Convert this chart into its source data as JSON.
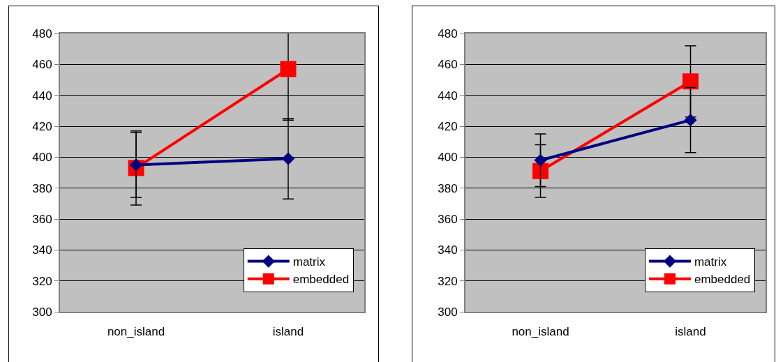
{
  "chart_data": [
    {
      "type": "line",
      "categories": [
        "non_island",
        "island"
      ],
      "ylim": [
        300,
        480
      ],
      "yticks": [
        300,
        320,
        340,
        360,
        380,
        400,
        420,
        440,
        460,
        480
      ],
      "grid": "y",
      "legend": "bottom right",
      "series": [
        {
          "name": "matrix",
          "color": "#000080",
          "marker": "diamond",
          "values": [
            395,
            399
          ],
          "errors": [
            21,
            26
          ]
        },
        {
          "name": "embedded",
          "color": "#ff0000",
          "marker": "square",
          "values": [
            393,
            457
          ],
          "errors": [
            24,
            33
          ]
        }
      ]
    },
    {
      "type": "line",
      "categories": [
        "non_island",
        "island"
      ],
      "ylim": [
        300,
        480
      ],
      "yticks": [
        300,
        320,
        340,
        360,
        380,
        400,
        420,
        440,
        460,
        480
      ],
      "grid": "y",
      "legend": "bottom right",
      "series": [
        {
          "name": "matrix",
          "color": "#000080",
          "marker": "diamond",
          "values": [
            398,
            424
          ],
          "errors": [
            17,
            21
          ]
        },
        {
          "name": "embedded",
          "color": "#ff0000",
          "marker": "square",
          "values": [
            391,
            449
          ],
          "errors": [
            17,
            23
          ]
        }
      ]
    }
  ]
}
